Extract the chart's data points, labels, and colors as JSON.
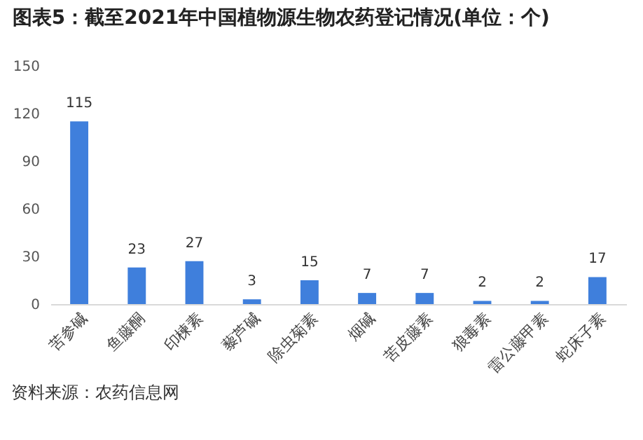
{
  "chart_data": {
    "type": "bar",
    "title": "图表5：截至2021年中国植物源生物农药登记情况(单位：个)",
    "categories": [
      "苦参碱",
      "鱼藤酮",
      "印楝素",
      "藜芦碱",
      "除虫菊素",
      "烟碱",
      "苦皮藤素",
      "狼毒素",
      "雷公藤甲素",
      "蛇床子素"
    ],
    "values": [
      115,
      23,
      27,
      3,
      15,
      7,
      7,
      2,
      2,
      17
    ],
    "color": "#3f7fdc",
    "ylim": [
      0,
      150
    ],
    "yticks": [
      0,
      30,
      60,
      90,
      120,
      150
    ],
    "grid": false,
    "data_labels": true,
    "annotations": [
      "资料来源：农药信息网"
    ]
  }
}
